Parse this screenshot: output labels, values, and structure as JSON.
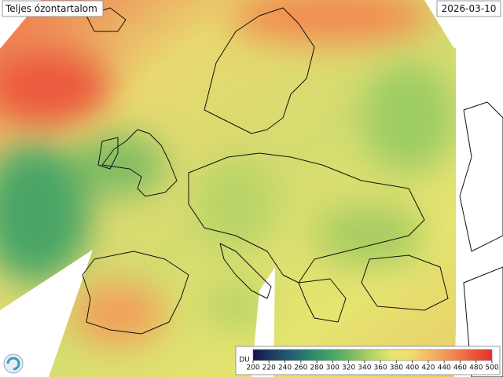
{
  "title": "Teljes ózontartalom",
  "date": "2026-03-10",
  "colorbar": {
    "unit": "DU",
    "range": [
      200,
      500
    ],
    "ticks": [
      200,
      220,
      240,
      260,
      280,
      300,
      320,
      340,
      360,
      380,
      400,
      420,
      440,
      460,
      480,
      500
    ],
    "colors": [
      "#14144a",
      "#1d3e63",
      "#236370",
      "#2f8a6c",
      "#4aa566",
      "#7ebc62",
      "#b8d466",
      "#e6e870",
      "#f2da6c",
      "#f4b462",
      "#f28a50",
      "#ec5a3c",
      "#e6302e"
    ]
  }
}
